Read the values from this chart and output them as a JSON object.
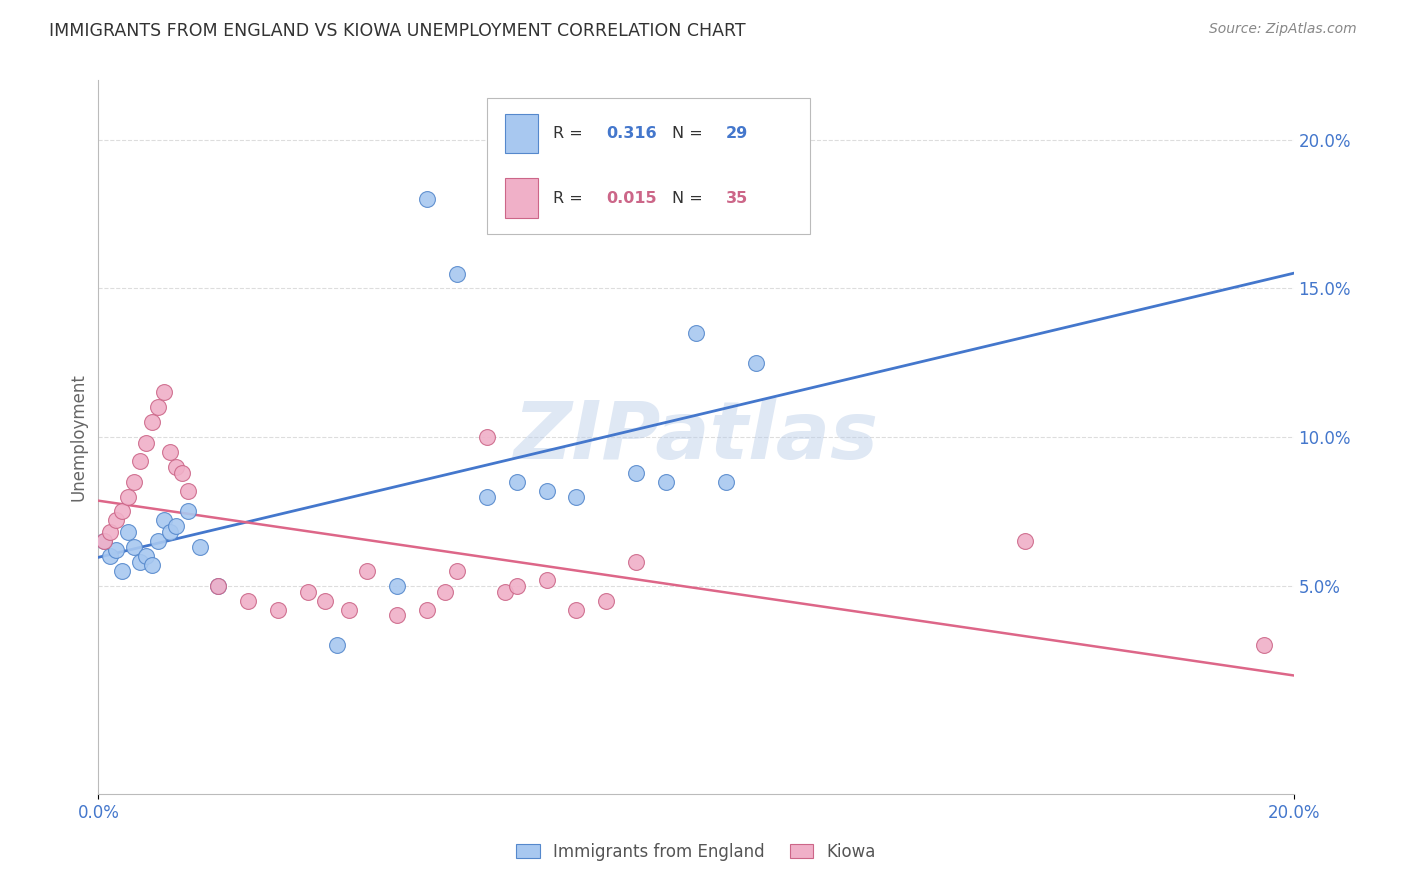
{
  "title": "IMMIGRANTS FROM ENGLAND VS KIOWA UNEMPLOYMENT CORRELATION CHART",
  "source": "Source: ZipAtlas.com",
  "ylabel": "Unemployment",
  "watermark": "ZIPatlas",
  "legend_label_blue": "Immigrants from England",
  "legend_label_pink": "Kiowa",
  "blue_r": "0.316",
  "blue_n": "29",
  "pink_r": "0.015",
  "pink_n": "35",
  "blue_scatter_x": [
    0.001,
    0.002,
    0.003,
    0.004,
    0.005,
    0.006,
    0.007,
    0.008,
    0.009,
    0.01,
    0.011,
    0.012,
    0.013,
    0.015,
    0.017,
    0.02,
    0.04,
    0.05,
    0.055,
    0.06,
    0.065,
    0.07,
    0.075,
    0.08,
    0.09,
    0.095,
    0.1,
    0.11,
    0.105
  ],
  "blue_scatter_y": [
    0.065,
    0.06,
    0.062,
    0.055,
    0.068,
    0.063,
    0.058,
    0.06,
    0.057,
    0.065,
    0.072,
    0.068,
    0.07,
    0.075,
    0.063,
    0.05,
    0.03,
    0.05,
    0.18,
    0.155,
    0.08,
    0.085,
    0.082,
    0.08,
    0.088,
    0.085,
    0.135,
    0.125,
    0.085
  ],
  "pink_scatter_x": [
    0.001,
    0.002,
    0.003,
    0.004,
    0.005,
    0.006,
    0.007,
    0.008,
    0.009,
    0.01,
    0.011,
    0.012,
    0.013,
    0.014,
    0.015,
    0.02,
    0.025,
    0.03,
    0.035,
    0.038,
    0.042,
    0.045,
    0.05,
    0.055,
    0.058,
    0.06,
    0.065,
    0.068,
    0.07,
    0.075,
    0.08,
    0.085,
    0.09,
    0.155,
    0.195
  ],
  "pink_scatter_y": [
    0.065,
    0.068,
    0.072,
    0.075,
    0.08,
    0.085,
    0.092,
    0.098,
    0.105,
    0.11,
    0.115,
    0.095,
    0.09,
    0.088,
    0.082,
    0.05,
    0.045,
    0.042,
    0.048,
    0.045,
    0.042,
    0.055,
    0.04,
    0.042,
    0.048,
    0.055,
    0.1,
    0.048,
    0.05,
    0.052,
    0.042,
    0.045,
    0.058,
    0.065,
    0.03
  ],
  "blue_color": "#a8c8f0",
  "pink_color": "#f0b0c8",
  "blue_edge_color": "#5588cc",
  "pink_edge_color": "#cc6688",
  "blue_line_color": "#4477cc",
  "pink_line_color": "#dd6688",
  "background_color": "#ffffff",
  "grid_color": "#dddddd",
  "title_color": "#333333",
  "source_color": "#888888",
  "axis_tick_color": "#4477cc",
  "ylabel_color": "#666666",
  "xlim": [
    0.0,
    0.2
  ],
  "ylim": [
    -0.02,
    0.22
  ],
  "ytick_positions": [
    0.05,
    0.1,
    0.15,
    0.2
  ],
  "ytick_labels": [
    "5.0%",
    "10.0%",
    "15.0%",
    "20.0%"
  ],
  "xtick_positions": [
    0.0,
    0.2
  ],
  "xtick_labels": [
    "0.0%",
    "20.0%"
  ]
}
